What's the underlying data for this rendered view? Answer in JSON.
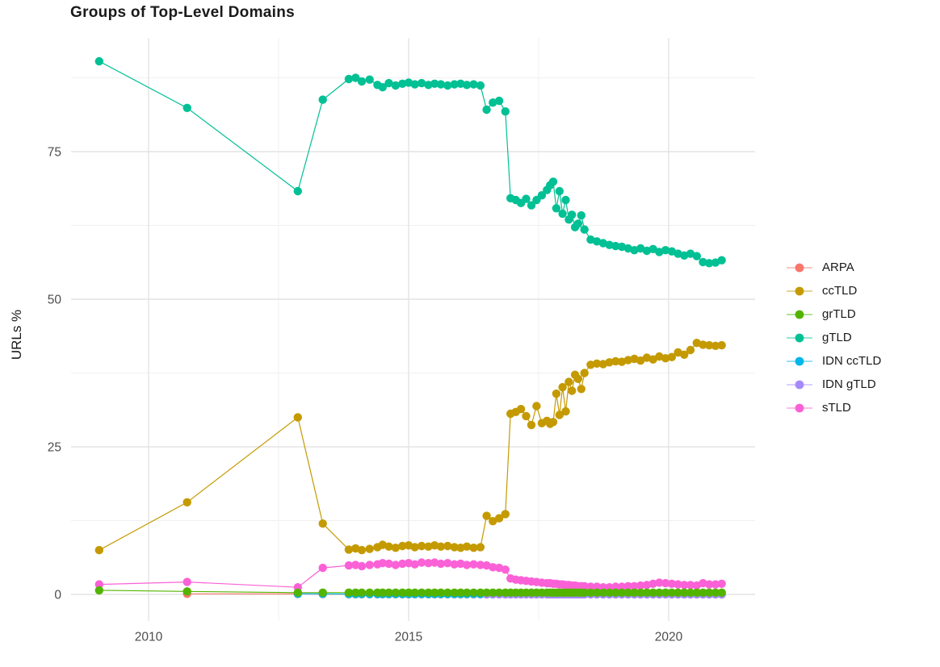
{
  "title": "Groups of Top-Level Domains",
  "y_axis": {
    "label": "URLs %",
    "ticks": [
      0,
      25,
      50,
      75
    ]
  },
  "x_axis": {
    "ticks": [
      2010,
      2015,
      2020
    ]
  },
  "colors": {
    "background": "#FFFFFF",
    "grid_major": "#E3E3E3",
    "grid_minor": "#F0F0F0",
    "axis_text": "#4D4D4D",
    "text": "#1A1A1A"
  },
  "legend": {
    "items": [
      {
        "label": "ARPA",
        "color": "#F8766D"
      },
      {
        "label": "ccTLD",
        "color": "#C49A00"
      },
      {
        "label": "grTLD",
        "color": "#53B400"
      },
      {
        "label": "gTLD",
        "color": "#00C094"
      },
      {
        "label": "IDN ccTLD",
        "color": "#00B6EB"
      },
      {
        "label": "IDN gTLD",
        "color": "#A58AFF"
      },
      {
        "label": "sTLD",
        "color": "#FB61D7"
      }
    ]
  },
  "chart_data": {
    "type": "line",
    "title": "Groups of Top-Level Domains",
    "xlabel": "",
    "ylabel": "URLs %",
    "xlim": [
      2008.5,
      2021.66
    ],
    "ylim": [
      -4.5,
      94.3
    ],
    "legend_position": "right",
    "grid": {
      "x_major": [
        2010,
        2015,
        2020
      ],
      "x_minor": [
        2012.5,
        2017.5
      ],
      "y_major": [
        0,
        25,
        50,
        75
      ],
      "y_minor": [
        12.5,
        37.5,
        62.5,
        87.5
      ]
    },
    "draw_order": [
      "ARPA",
      "IDN ccTLD",
      "IDN gTLD",
      "sTLD",
      "ccTLD",
      "gTLD",
      "grTLD"
    ],
    "x": [
      2009.05,
      2010.74,
      2012.87,
      2013.35,
      2013.85,
      2013.98,
      2014.1,
      2014.25,
      2014.4,
      2014.5,
      2014.62,
      2014.75,
      2014.88,
      2015.0,
      2015.12,
      2015.25,
      2015.38,
      2015.5,
      2015.62,
      2015.75,
      2015.88,
      2016.0,
      2016.12,
      2016.25,
      2016.38,
      2016.5,
      2016.62,
      2016.74,
      2016.86,
      2016.96,
      2017.06,
      2017.16,
      2017.26,
      2017.36,
      2017.46,
      2017.56,
      2017.66,
      2017.72,
      2017.78,
      2017.84,
      2017.9,
      2017.96,
      2018.02,
      2018.08,
      2018.14,
      2018.2,
      2018.26,
      2018.32,
      2018.38,
      2018.5,
      2018.62,
      2018.74,
      2018.86,
      2018.98,
      2019.1,
      2019.22,
      2019.34,
      2019.46,
      2019.58,
      2019.7,
      2019.82,
      2019.94,
      2020.06,
      2020.18,
      2020.3,
      2020.42,
      2020.54,
      2020.66,
      2020.78,
      2020.9,
      2021.02
    ],
    "series": [
      {
        "name": "ARPA",
        "color": "#F8766D",
        "values": [
          null,
          0.1,
          0.08,
          0.05,
          0.03,
          0.03,
          0.03,
          0.03,
          0.03,
          0.03,
          0.03,
          0.03,
          0.03,
          0.03,
          0.03,
          0.03,
          0.03,
          0.03,
          0.03,
          0.03,
          0.03,
          0.03,
          0.03,
          0.03,
          0.03,
          0.03,
          0.03,
          0.03,
          0.03,
          0.03,
          0.03,
          0.03,
          0.03,
          0.03,
          0.03,
          0.03,
          0.03,
          0.03,
          0.03,
          0.03,
          0.03,
          0.03,
          0.03,
          0.03,
          0.03,
          0.03,
          0.03,
          0.03,
          0.03,
          0.03,
          0.03,
          0.03,
          0.03,
          0.03,
          0.03,
          0.03,
          0.03,
          0.03,
          0.03,
          0.03,
          0.03,
          0.03,
          0.03,
          0.03,
          0.03,
          0.03,
          0.03,
          0.03,
          0.03,
          0.03,
          0.03
        ]
      },
      {
        "name": "ccTLD",
        "color": "#C49A00",
        "values": [
          7.5,
          15.6,
          30.0,
          12.0,
          7.6,
          7.8,
          7.5,
          7.7,
          8.0,
          8.4,
          8.1,
          7.9,
          8.2,
          8.3,
          8.0,
          8.2,
          8.1,
          8.3,
          8.1,
          8.2,
          8.0,
          7.9,
          8.1,
          7.9,
          8.0,
          13.3,
          12.4,
          12.9,
          13.6,
          30.6,
          30.9,
          31.4,
          30.2,
          28.7,
          31.9,
          29.0,
          29.4,
          28.9,
          29.2,
          34.0,
          30.4,
          35.1,
          31.0,
          36.0,
          34.5,
          37.2,
          36.5,
          34.8,
          37.5,
          38.9,
          39.1,
          39.0,
          39.3,
          39.5,
          39.4,
          39.7,
          39.9,
          39.6,
          40.1,
          39.8,
          40.3,
          40.0,
          40.2,
          41.0,
          40.6,
          41.4,
          42.6,
          42.3,
          42.2,
          42.1,
          42.2
        ]
      },
      {
        "name": "grTLD",
        "color": "#53B400",
        "values": [
          0.7,
          0.5,
          0.3,
          0.3,
          0.3,
          0.3,
          0.3,
          0.3,
          0.3,
          0.3,
          0.3,
          0.3,
          0.3,
          0.3,
          0.3,
          0.3,
          0.3,
          0.3,
          0.3,
          0.3,
          0.3,
          0.3,
          0.3,
          0.3,
          0.3,
          0.3,
          0.3,
          0.3,
          0.3,
          0.3,
          0.3,
          0.3,
          0.3,
          0.3,
          0.3,
          0.3,
          0.3,
          0.3,
          0.3,
          0.3,
          0.3,
          0.3,
          0.3,
          0.3,
          0.3,
          0.3,
          0.3,
          0.3,
          0.3,
          0.3,
          0.3,
          0.3,
          0.3,
          0.3,
          0.3,
          0.3,
          0.3,
          0.3,
          0.3,
          0.3,
          0.3,
          0.3,
          0.3,
          0.3,
          0.3,
          0.3,
          0.3,
          0.3,
          0.3,
          0.3,
          0.3
        ]
      },
      {
        "name": "gTLD",
        "color": "#00C094",
        "values": [
          90.3,
          82.4,
          68.3,
          83.8,
          87.3,
          87.5,
          86.9,
          87.2,
          86.3,
          85.9,
          86.6,
          86.2,
          86.5,
          86.7,
          86.4,
          86.6,
          86.3,
          86.5,
          86.4,
          86.2,
          86.4,
          86.5,
          86.3,
          86.4,
          86.2,
          82.1,
          83.3,
          83.6,
          81.8,
          67.1,
          66.8,
          66.3,
          67.0,
          65.9,
          66.8,
          67.6,
          68.5,
          69.3,
          69.9,
          65.4,
          68.3,
          64.5,
          66.8,
          63.5,
          64.3,
          62.2,
          62.8,
          64.2,
          61.8,
          60.1,
          59.8,
          59.5,
          59.2,
          59.0,
          58.9,
          58.6,
          58.3,
          58.6,
          58.2,
          58.5,
          58.0,
          58.3,
          58.1,
          57.7,
          57.4,
          57.7,
          57.3,
          56.3,
          56.1,
          56.2,
          56.6
        ]
      },
      {
        "name": "IDN ccTLD",
        "color": "#00B6EB",
        "values": [
          null,
          null,
          0.1,
          0.1,
          0.06,
          0.06,
          0.06,
          0.06,
          0.06,
          0.06,
          0.06,
          0.06,
          0.06,
          0.06,
          0.06,
          0.06,
          0.06,
          0.06,
          0.06,
          0.06,
          0.06,
          0.06,
          0.06,
          0.06,
          0.06,
          0.06,
          0.06,
          0.06,
          0.06,
          0.06,
          0.06,
          0.06,
          0.06,
          0.06,
          0.06,
          0.06,
          0.06,
          0.06,
          0.06,
          0.06,
          0.06,
          0.06,
          0.06,
          0.06,
          0.06,
          0.06,
          0.06,
          0.06,
          0.06,
          0.06,
          0.06,
          0.06,
          0.06,
          0.06,
          0.06,
          0.06,
          0.06,
          0.06,
          0.06,
          0.06,
          0.06,
          0.06,
          0.06,
          0.06,
          0.06,
          0.06,
          0.06,
          0.06,
          0.06,
          0.06,
          0.06
        ]
      },
      {
        "name": "IDN gTLD",
        "color": "#A58AFF",
        "values": [
          null,
          null,
          null,
          null,
          null,
          null,
          null,
          null,
          null,
          null,
          null,
          null,
          null,
          null,
          null,
          null,
          null,
          null,
          null,
          null,
          null,
          null,
          null,
          null,
          null,
          0.01,
          0.01,
          0.01,
          0.01,
          0.01,
          0.01,
          0.01,
          0.01,
          0.01,
          0.01,
          0.01,
          0.01,
          0.01,
          0.01,
          0.01,
          0.01,
          0.01,
          0.01,
          0.01,
          0.01,
          0.01,
          0.01,
          0.01,
          0.01,
          0.01,
          0.01,
          0.01,
          0.01,
          0.01,
          0.01,
          0.01,
          0.01,
          0.01,
          0.01,
          0.01,
          0.01,
          0.01,
          0.01,
          0.01,
          0.01,
          0.01,
          0.01,
          0.01,
          0.01,
          0.01,
          0.01
        ]
      },
      {
        "name": "sTLD",
        "color": "#FB61D7",
        "values": [
          1.7,
          2.1,
          1.2,
          4.5,
          4.9,
          5.0,
          4.8,
          5.0,
          5.1,
          5.3,
          5.2,
          5.0,
          5.2,
          5.3,
          5.1,
          5.4,
          5.3,
          5.4,
          5.2,
          5.3,
          5.1,
          5.2,
          5.0,
          5.1,
          5.0,
          4.9,
          4.6,
          4.5,
          4.2,
          2.7,
          2.5,
          2.4,
          2.3,
          2.2,
          2.1,
          2.0,
          1.9,
          1.9,
          1.8,
          1.8,
          1.7,
          1.7,
          1.6,
          1.6,
          1.5,
          1.5,
          1.4,
          1.4,
          1.4,
          1.3,
          1.3,
          1.2,
          1.2,
          1.3,
          1.3,
          1.4,
          1.4,
          1.5,
          1.6,
          1.8,
          2.0,
          1.9,
          1.8,
          1.7,
          1.6,
          1.6,
          1.5,
          1.9,
          1.7,
          1.7,
          1.8
        ]
      }
    ]
  }
}
